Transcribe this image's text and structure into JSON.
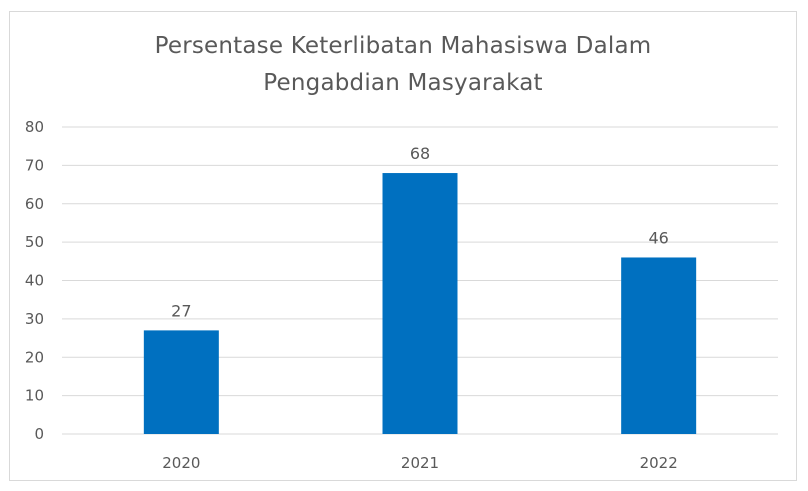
{
  "chart_data": {
    "type": "bar",
    "title_lines": [
      "Persentase Keterlibatan Mahasiswa Dalam",
      "Pengabdian Masyarakat"
    ],
    "categories": [
      "2020",
      "2021",
      "2022"
    ],
    "values": [
      27,
      68,
      46
    ],
    "xlabel": "",
    "ylabel": "",
    "ylim": [
      0,
      80
    ],
    "yticks": [
      0,
      10,
      20,
      30,
      40,
      50,
      60,
      70,
      80
    ],
    "grid": true,
    "data_labels": true,
    "legend": "none",
    "bar_color": "#0070c0",
    "grid_color": "#d9d9d9",
    "text_color": "#595959"
  }
}
